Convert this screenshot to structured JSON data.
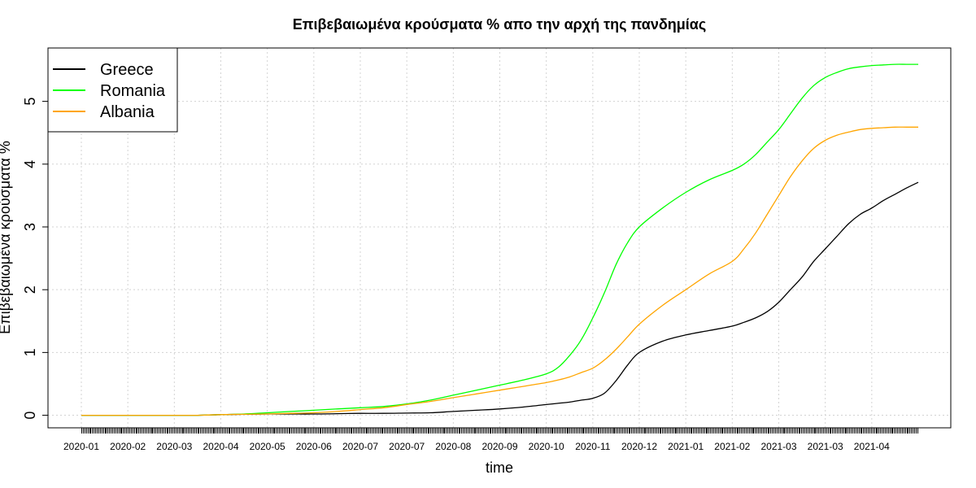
{
  "chart_data": {
    "type": "line",
    "title": "Επιβεβαιωμένα κρούσματα % απο την αρχή της πανδημίας",
    "xlabel": "time",
    "ylabel": "Επιβεβαιωμένα κρούσματα %",
    "ylim": [
      -0.2,
      5.85
    ],
    "y_ticks": [
      0,
      1,
      2,
      3,
      4,
      5
    ],
    "grid": true,
    "legend_position": "top-left",
    "x_tick_labels": [
      "2020-01",
      "2020-02",
      "2020-03",
      "2020-04",
      "2020-05",
      "2020-06",
      "2020-07",
      "2020-07",
      "2020-08",
      "2020-09",
      "2020-10",
      "2020-11",
      "2020-12",
      "2021-01",
      "2021-02",
      "2021-03",
      "2021-03",
      "2021-04"
    ],
    "x_tick_index": [
      0,
      1,
      2,
      3,
      4,
      5,
      6,
      7,
      8,
      9,
      10,
      11,
      12,
      13,
      14,
      15,
      16,
      17
    ],
    "x_range": [
      0,
      18
    ],
    "x": [
      0,
      2,
      2.5,
      3,
      3.5,
      4,
      4.5,
      5,
      5.5,
      6,
      6.5,
      7,
      7.5,
      8,
      8.5,
      9,
      9.5,
      10,
      10.25,
      10.5,
      10.75,
      11,
      11.25,
      11.5,
      11.75,
      12,
      12.5,
      13,
      13.5,
      14,
      14.25,
      14.5,
      14.75,
      15,
      15.25,
      15.5,
      15.75,
      16,
      16.25,
      16.5,
      16.75,
      17,
      17.25,
      17.5,
      17.75,
      18
    ],
    "series": [
      {
        "name": "Greece",
        "color": "#000000",
        "values": [
          0,
          0,
          0,
          0.01,
          0.015,
          0.02,
          0.02,
          0.02,
          0.025,
          0.03,
          0.03,
          0.035,
          0.04,
          0.06,
          0.08,
          0.1,
          0.13,
          0.17,
          0.19,
          0.21,
          0.24,
          0.27,
          0.35,
          0.55,
          0.8,
          1.0,
          1.18,
          1.28,
          1.35,
          1.42,
          1.48,
          1.55,
          1.65,
          1.8,
          2.0,
          2.2,
          2.45,
          2.65,
          2.85,
          3.05,
          3.2,
          3.3,
          3.42,
          3.52,
          3.62,
          3.71
        ]
      },
      {
        "name": "Romania",
        "color": "#00ff00",
        "values": [
          0,
          0,
          0,
          0.01,
          0.02,
          0.04,
          0.06,
          0.08,
          0.1,
          0.12,
          0.14,
          0.18,
          0.24,
          0.32,
          0.4,
          0.48,
          0.56,
          0.66,
          0.76,
          0.95,
          1.2,
          1.55,
          1.95,
          2.4,
          2.75,
          3.0,
          3.3,
          3.55,
          3.75,
          3.9,
          4.0,
          4.15,
          4.35,
          4.55,
          4.8,
          5.05,
          5.25,
          5.38,
          5.46,
          5.52,
          5.55,
          5.57,
          5.58,
          5.59,
          5.59,
          5.59
        ]
      },
      {
        "name": "Albania",
        "color": "#ffa500",
        "values": [
          0,
          0,
          0,
          0.01,
          0.015,
          0.02,
          0.03,
          0.04,
          0.06,
          0.09,
          0.12,
          0.17,
          0.22,
          0.28,
          0.34,
          0.4,
          0.46,
          0.52,
          0.56,
          0.61,
          0.68,
          0.75,
          0.88,
          1.05,
          1.25,
          1.45,
          1.75,
          2.0,
          2.25,
          2.45,
          2.65,
          2.9,
          3.2,
          3.5,
          3.8,
          4.05,
          4.25,
          4.38,
          4.46,
          4.51,
          4.55,
          4.57,
          4.58,
          4.59,
          4.59,
          4.59
        ]
      }
    ]
  }
}
